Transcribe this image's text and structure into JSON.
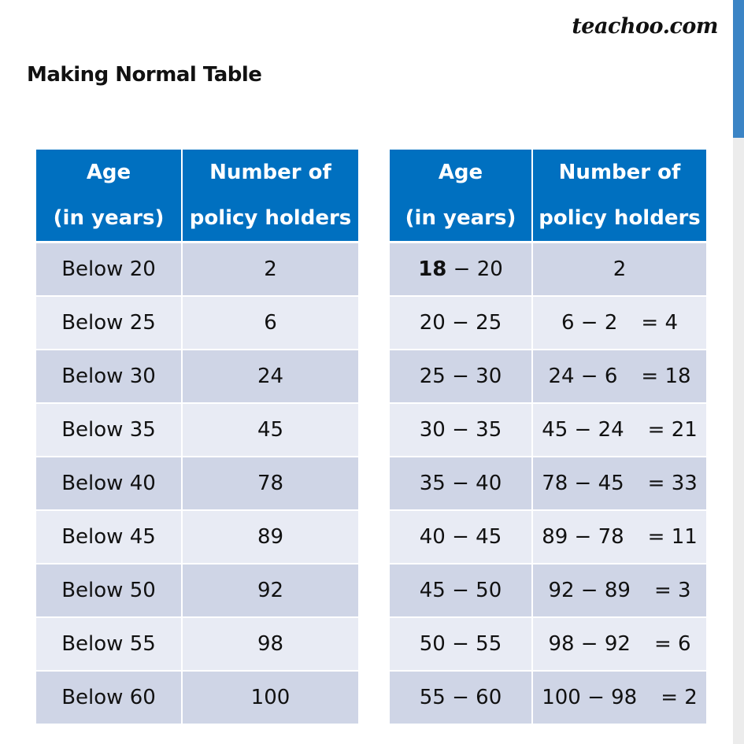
{
  "brand": "teachoo.com",
  "heading": "Making Normal Table",
  "header": {
    "age_line1": "Age",
    "age_line2": "(in years)",
    "count_line1": "Number of",
    "count_line2": "policy holders"
  },
  "cumulative_table": {
    "rows": [
      {
        "age": "Below 20",
        "count": "2"
      },
      {
        "age": "Below 25",
        "count": "6"
      },
      {
        "age": "Below 30",
        "count": "24"
      },
      {
        "age": "Below 35",
        "count": "45"
      },
      {
        "age": "Below 40",
        "count": "78"
      },
      {
        "age": "Below 45",
        "count": "89"
      },
      {
        "age": "Below 50",
        "count": "92"
      },
      {
        "age": "Below 55",
        "count": "98"
      },
      {
        "age": "Below 60",
        "count": "100"
      }
    ]
  },
  "normal_table": {
    "rows": [
      {
        "from": "18",
        "to": "20",
        "calc": "",
        "result": "2"
      },
      {
        "from": "20",
        "to": "25",
        "calc": "6 − 2",
        "result": "= 4"
      },
      {
        "from": "25",
        "to": "30",
        "calc": "24 − 6",
        "result": "= 18"
      },
      {
        "from": "30",
        "to": "35",
        "calc": "45 − 24",
        "result": "= 21"
      },
      {
        "from": "35",
        "to": "40",
        "calc": "78 − 45",
        "result": "= 33"
      },
      {
        "from": "40",
        "to": "45",
        "calc": "89 − 78",
        "result": "= 11"
      },
      {
        "from": "45",
        "to": "50",
        "calc": "92 − 89",
        "result": "= 3"
      },
      {
        "from": "50",
        "to": "55",
        "calc": "98 − 92",
        "result": "= 6"
      },
      {
        "from": "55",
        "to": "60",
        "calc": "100 − 98",
        "result": "= 2"
      }
    ]
  },
  "colors": {
    "header_bg": "#0070c0",
    "row_dark": "#cfd5e6",
    "row_light": "#e8ebf4",
    "accent": "#3b84c5"
  }
}
